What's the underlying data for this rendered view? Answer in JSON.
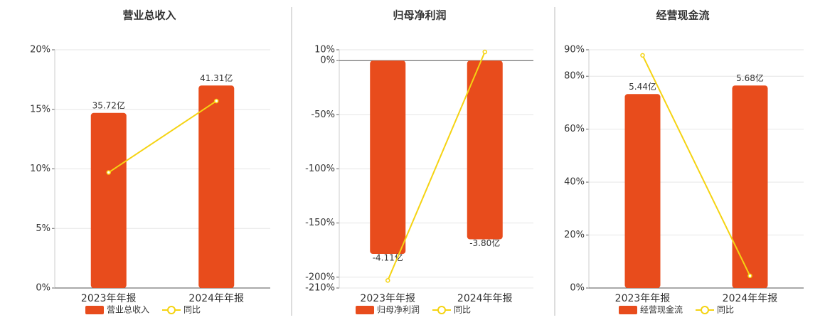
{
  "chart_data": [
    {
      "type": "bar",
      "title": "营业总收入",
      "categories": [
        "2023年年报",
        "2024年年报"
      ],
      "series": [
        {
          "name": "营业总收入",
          "type": "bar",
          "color": "#e84c1c",
          "values": [
            35.72,
            41.31
          ],
          "value_labels": [
            "35.72亿",
            "41.31亿"
          ]
        },
        {
          "name": "同比",
          "type": "line",
          "color": "#f5d312",
          "values": [
            9.7,
            15.7
          ]
        }
      ],
      "ylim": [
        0,
        20
      ],
      "yticks": [
        {
          "value": 0,
          "label": "0%"
        },
        {
          "value": 5,
          "label": "5%"
        },
        {
          "value": 10,
          "label": "10%"
        },
        {
          "value": 15,
          "label": "15%"
        },
        {
          "value": 20,
          "label": "20%"
        }
      ],
      "grid": true
    },
    {
      "type": "bar",
      "title": "归母净利润",
      "categories": [
        "2023年年报",
        "2024年年报"
      ],
      "series": [
        {
          "name": "归母净利润",
          "type": "bar",
          "color": "#e84c1c",
          "values": [
            -4.11,
            -3.8
          ],
          "value_labels": [
            "-4.11亿",
            "-3.80亿"
          ]
        },
        {
          "name": "同比",
          "type": "line",
          "color": "#f5d312",
          "values": [
            -203,
            8
          ]
        }
      ],
      "ylim": [
        -210,
        10
      ],
      "yticks": [
        {
          "value": -210,
          "label": "-210%"
        },
        {
          "value": -200,
          "label": "-200%"
        },
        {
          "value": -150,
          "label": "-150%"
        },
        {
          "value": -100,
          "label": "-100%"
        },
        {
          "value": -50,
          "label": "-50%"
        },
        {
          "value": 0,
          "label": "0%"
        },
        {
          "value": 10,
          "label": "10%"
        }
      ],
      "grid": true
    },
    {
      "type": "bar",
      "title": "经营现金流",
      "categories": [
        "2023年年报",
        "2024年年报"
      ],
      "series": [
        {
          "name": "经营现金流",
          "type": "bar",
          "color": "#e84c1c",
          "values": [
            5.44,
            5.68
          ],
          "value_labels": [
            "5.44亿",
            "5.68亿"
          ]
        },
        {
          "name": "同比",
          "type": "line",
          "color": "#f5d312",
          "values": [
            87.9,
            4.6
          ]
        }
      ],
      "ylim": [
        0,
        90
      ],
      "yticks": [
        {
          "value": 0,
          "label": "0%"
        },
        {
          "value": 20,
          "label": "20%"
        },
        {
          "value": 40,
          "label": "40%"
        },
        {
          "value": 60,
          "label": "60%"
        },
        {
          "value": 80,
          "label": "80%"
        },
        {
          "value": 90,
          "label": "90%"
        }
      ],
      "grid": true
    }
  ]
}
